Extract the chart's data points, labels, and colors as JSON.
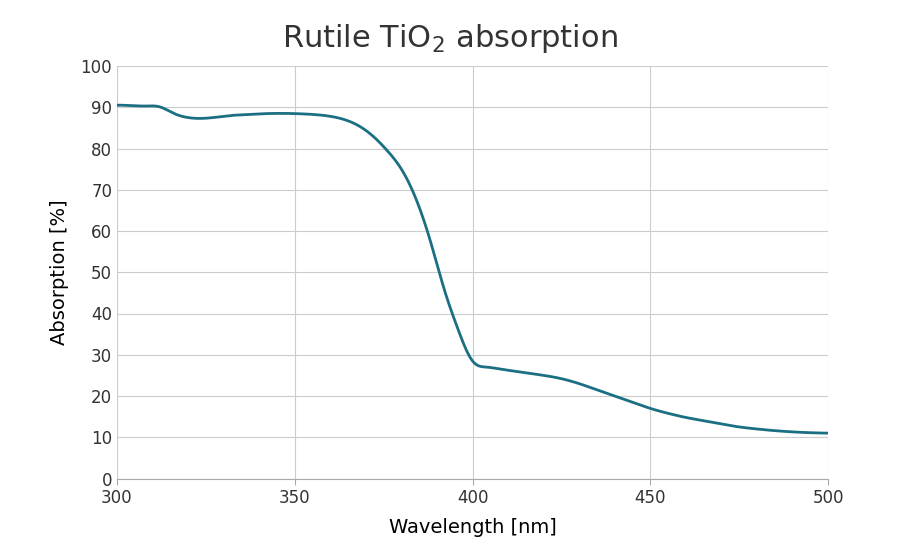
{
  "title_parts": [
    "Rutile TiO",
    "2",
    " absorption"
  ],
  "xlabel": "Wavelength [nm]",
  "ylabel": "Absorption [%]",
  "xlim": [
    300,
    500
  ],
  "ylim": [
    0,
    100
  ],
  "xticks": [
    300,
    350,
    400,
    450,
    500
  ],
  "yticks": [
    0,
    10,
    20,
    30,
    40,
    50,
    60,
    70,
    80,
    90,
    100
  ],
  "line_color": "#1b6f82",
  "line_width": 2.0,
  "background_color": "#ffffff",
  "grid_color": "#cccccc",
  "title_fontsize": 22,
  "axis_label_fontsize": 14,
  "tick_fontsize": 12,
  "curve_x": [
    300,
    304,
    308,
    312,
    316,
    320,
    324,
    328,
    332,
    336,
    340,
    344,
    348,
    352,
    356,
    360,
    364,
    368,
    372,
    376,
    380,
    384,
    388,
    392,
    396,
    400,
    404,
    408,
    412,
    416,
    420,
    425,
    430,
    435,
    440,
    445,
    450,
    455,
    460,
    465,
    470,
    475,
    480,
    485,
    490,
    495,
    500
  ],
  "curve_y": [
    90.5,
    90.4,
    90.3,
    90.1,
    88.5,
    87.5,
    87.3,
    87.6,
    88.0,
    88.2,
    88.4,
    88.5,
    88.5,
    88.4,
    88.2,
    87.8,
    87.0,
    85.5,
    83.0,
    79.5,
    75.0,
    68.0,
    58.0,
    46.0,
    36.0,
    28.5,
    27.0,
    26.5,
    26.0,
    25.5,
    25.0,
    24.2,
    23.0,
    21.5,
    20.0,
    18.5,
    17.0,
    15.8,
    14.8,
    14.0,
    13.2,
    12.5,
    12.0,
    11.6,
    11.3,
    11.1,
    11.0
  ]
}
